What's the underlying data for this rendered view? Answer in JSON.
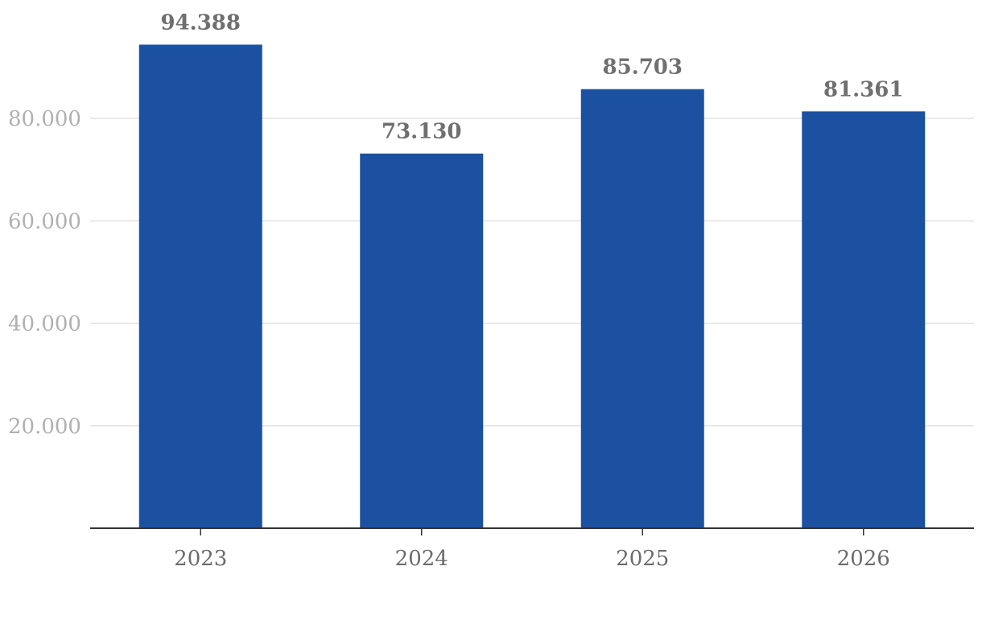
{
  "chart_data": {
    "type": "bar",
    "title": "",
    "xlabel": "",
    "ylabel": "",
    "categories": [
      "2023",
      "2024",
      "2025",
      "2026"
    ],
    "values": [
      94388,
      73130,
      85703,
      81361
    ],
    "value_labels": [
      "94.388",
      "73.130",
      "85.703",
      "81.361"
    ],
    "ylim": [
      0,
      100000
    ],
    "yticks": [
      20000,
      40000,
      60000,
      80000
    ],
    "ytick_labels": [
      "20.000",
      "40.000",
      "60.000",
      "80.000"
    ],
    "grid": true,
    "legend": "none",
    "colors": {
      "bar": "#1b51a0"
    }
  }
}
